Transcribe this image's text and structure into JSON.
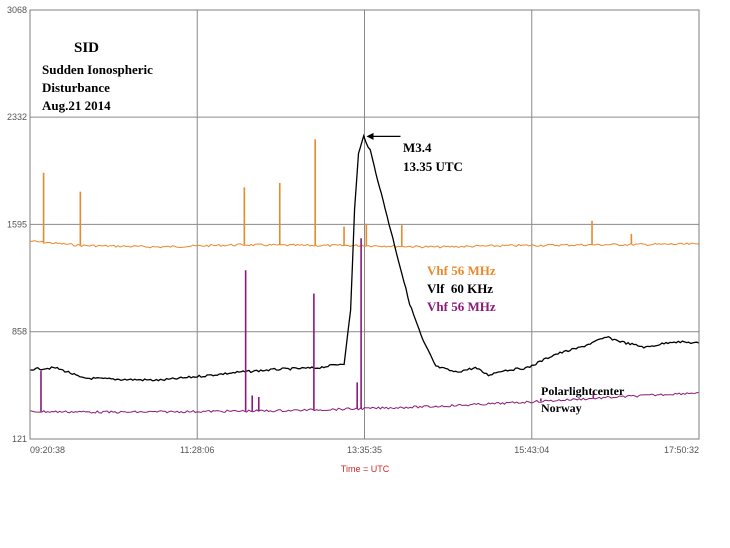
{
  "chart_data": {
    "type": "line",
    "title": "SID",
    "subtitle_lines": [
      "Sudden Ionospheric",
      "Disturbance",
      "Aug.21 2014"
    ],
    "xlabel": "Time = UTC",
    "ylabel": "",
    "x_ticks": [
      "09:20:38",
      "11:28:06",
      "13:35:35",
      "15:43:04",
      "17:50:32"
    ],
    "y_ticks": [
      "3068",
      "2332",
      "1595",
      "858",
      "121"
    ],
    "ylim": [
      121,
      3068
    ],
    "xlim": [
      "09:20:38",
      "17:50:32"
    ],
    "grid": true,
    "legend_placement": "center-right",
    "series": [
      {
        "name": "Vhf 56 MHz",
        "color": "#e8892b",
        "baseline": 1470,
        "points": [
          [
            "09:20:38",
            1480
          ],
          [
            "10:00:00",
            1450
          ],
          [
            "11:00:00",
            1440
          ],
          [
            "12:00:00",
            1455
          ],
          [
            "13:00:00",
            1450
          ],
          [
            "13:35:35",
            1450
          ],
          [
            "14:30:00",
            1440
          ],
          [
            "15:30:00",
            1450
          ],
          [
            "16:30:00",
            1455
          ],
          [
            "17:50:32",
            1460
          ]
        ],
        "spikes": [
          [
            "09:31:00",
            1950
          ],
          [
            "09:59:00",
            1820
          ],
          [
            "12:04:00",
            1850
          ],
          [
            "12:31:00",
            1880
          ],
          [
            "12:58:00",
            2180
          ],
          [
            "13:20:00",
            1580
          ],
          [
            "13:37:00",
            1600
          ],
          [
            "14:04:00",
            1590
          ],
          [
            "16:29:00",
            1620
          ],
          [
            "16:59:00",
            1530
          ]
        ]
      },
      {
        "name": "Vlf  60 KHz",
        "color": "#000000",
        "points": [
          [
            "09:20:38",
            600
          ],
          [
            "09:40:00",
            610
          ],
          [
            "09:50:00",
            580
          ],
          [
            "10:00:00",
            540
          ],
          [
            "10:30:00",
            530
          ],
          [
            "11:00:00",
            525
          ],
          [
            "11:28:06",
            550
          ],
          [
            "12:00:00",
            580
          ],
          [
            "12:30:00",
            600
          ],
          [
            "13:00:00",
            610
          ],
          [
            "13:20:00",
            640
          ],
          [
            "13:25:00",
            1000
          ],
          [
            "13:28:00",
            1700
          ],
          [
            "13:31:00",
            2080
          ],
          [
            "13:35:00",
            2200
          ],
          [
            "13:40:00",
            2100
          ],
          [
            "13:50:00",
            1750
          ],
          [
            "14:00:00",
            1400
          ],
          [
            "14:10:00",
            1050
          ],
          [
            "14:20:00",
            800
          ],
          [
            "14:30:00",
            620
          ],
          [
            "14:45:00",
            580
          ],
          [
            "15:00:00",
            610
          ],
          [
            "15:10:00",
            560
          ],
          [
            "15:20:00",
            590
          ],
          [
            "15:40:00",
            610
          ],
          [
            "16:00:00",
            700
          ],
          [
            "16:20:00",
            750
          ],
          [
            "16:40:00",
            820
          ],
          [
            "16:55:00",
            780
          ],
          [
            "17:10:00",
            750
          ],
          [
            "17:30:00",
            790
          ],
          [
            "17:50:32",
            780
          ]
        ]
      },
      {
        "name": "Vhf 56 MHz",
        "color": "#8b1a7a",
        "points": [
          [
            "09:20:38",
            310
          ],
          [
            "10:30:00",
            305
          ],
          [
            "11:28:06",
            310
          ],
          [
            "12:30:00",
            315
          ],
          [
            "13:35:35",
            330
          ],
          [
            "14:30:00",
            345
          ],
          [
            "15:30:00",
            370
          ],
          [
            "16:30:00",
            400
          ],
          [
            "17:50:32",
            440
          ]
        ],
        "spikes": [
          [
            "09:29:00",
            590
          ],
          [
            "12:05:00",
            1280
          ],
          [
            "12:10:00",
            420
          ],
          [
            "12:15:00",
            410
          ],
          [
            "12:57:00",
            1120
          ],
          [
            "13:30:00",
            510
          ],
          [
            "13:33:00",
            1500
          ],
          [
            "15:50:00",
            400
          ],
          [
            "16:30:00",
            450
          ]
        ]
      }
    ],
    "annotations": {
      "peak_label": "M3.4",
      "peak_time": "13.35 UTC",
      "peak_x": "13:35:35",
      "peak_y": 2200,
      "credit_line1": "Polarlightcenter",
      "credit_line2": "Norway"
    }
  }
}
